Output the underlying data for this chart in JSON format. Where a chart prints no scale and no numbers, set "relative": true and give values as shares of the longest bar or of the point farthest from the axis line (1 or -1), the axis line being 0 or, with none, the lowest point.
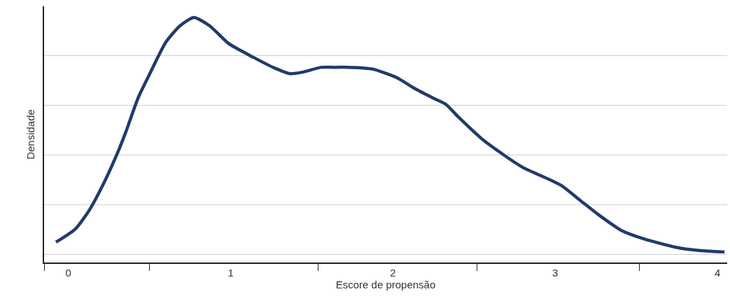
{
  "chart_data": {
    "type": "line",
    "relative": true,
    "xlabel": "Escore de propensão",
    "ylabel": "Densidade",
    "xlim": [
      -0.15,
      4.06
    ],
    "xticks": [
      0,
      1,
      2,
      3,
      4,
      {
        "value": -0.146,
        "label": null
      },
      {
        "value": 0.5,
        "label": null
      },
      {
        "value": 1.54,
        "label": null
      },
      {
        "value": 2.52,
        "label": null
      },
      {
        "value": 3.52,
        "label": null
      }
    ],
    "tick_labels": "x",
    "grid": "y",
    "marker": "none",
    "line_style": "solid",
    "series": [
      {
        "color": "#223a6b",
        "x": [
          -0.077,
          0.043,
          0.129,
          0.215,
          0.3,
          0.356,
          0.429,
          0.498,
          0.601,
          0.687,
          0.773,
          0.871,
          0.987,
          1.142,
          1.27,
          1.365,
          1.442,
          1.558,
          1.644,
          1.73,
          1.815,
          1.88,
          2.026,
          2.133,
          2.249,
          2.326,
          2.399,
          2.562,
          2.798,
          2.961,
          3.039,
          3.159,
          3.275,
          3.408,
          3.545,
          3.738,
          3.884,
          4.043
        ],
        "values": [
          0.083,
          0.137,
          0.214,
          0.32,
          0.443,
          0.537,
          0.671,
          0.766,
          0.9,
          0.966,
          1.0,
          0.966,
          0.894,
          0.837,
          0.794,
          0.771,
          0.777,
          0.797,
          0.797,
          0.797,
          0.794,
          0.789,
          0.754,
          0.711,
          0.671,
          0.646,
          0.597,
          0.497,
          0.389,
          0.34,
          0.314,
          0.251,
          0.191,
          0.131,
          0.097,
          0.063,
          0.049,
          0.043
        ]
      }
    ]
  }
}
